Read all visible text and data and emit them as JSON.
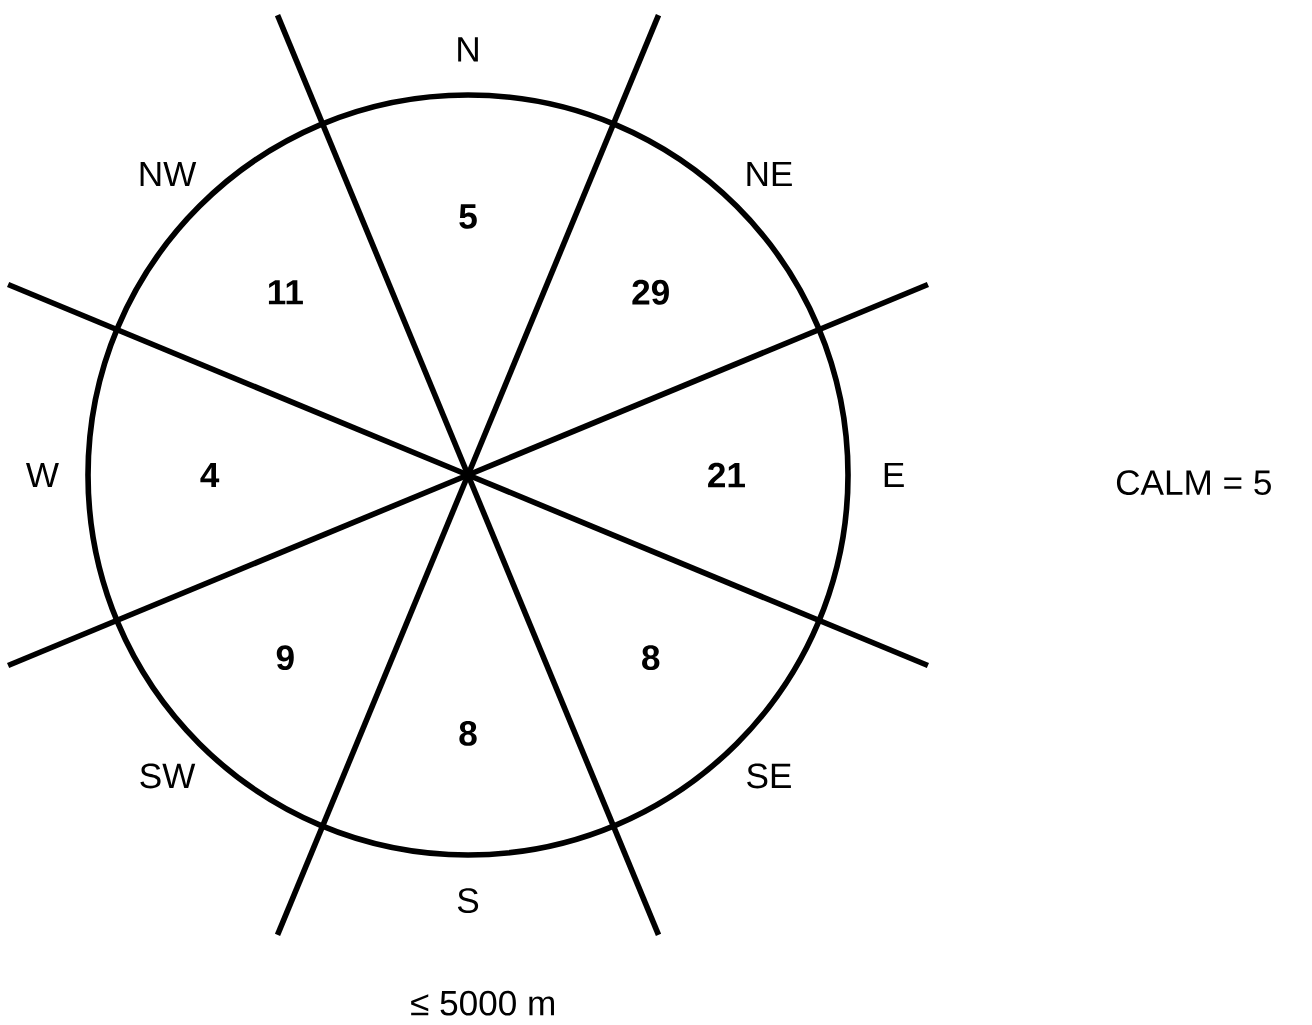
{
  "chart_data": {
    "type": "other",
    "categories": [
      "N",
      "NE",
      "E",
      "SE",
      "S",
      "SW",
      "W",
      "NW"
    ],
    "values": [
      5,
      29,
      21,
      8,
      8,
      9,
      4,
      11
    ],
    "data_labels": true,
    "annotations": [
      "CALM = 5",
      "≤ 5000 m"
    ]
  }
}
